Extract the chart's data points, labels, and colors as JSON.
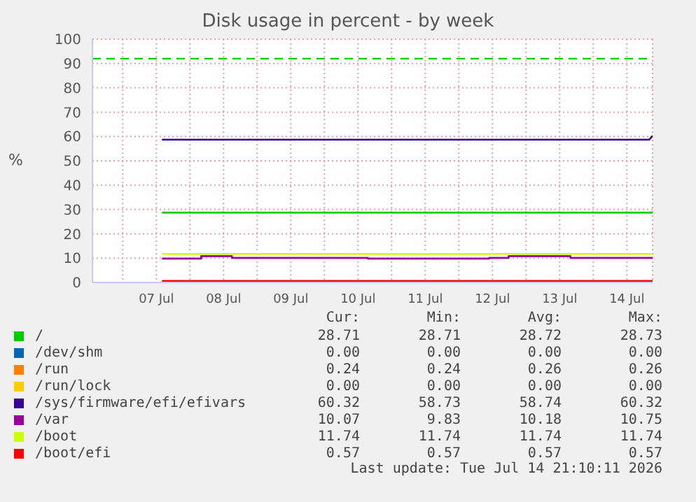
{
  "chart_data": {
    "type": "line",
    "title": "Disk usage in percent - by week",
    "ylabel": "%",
    "xlim": [
      "2026-07-06T13:10",
      "2026-07-14T21:10"
    ],
    "xticks": [
      {
        "value": "2026-07-07",
        "label": null
      },
      {
        "value": "2026-07-07T12:00",
        "label": "07 Jul"
      },
      {
        "value": "2026-07-08",
        "label": null
      },
      {
        "value": "2026-07-08T12:00",
        "label": "08 Jul"
      },
      {
        "value": "2026-07-09",
        "label": null
      },
      {
        "value": "2026-07-09T12:00",
        "label": "09 Jul"
      },
      {
        "value": "2026-07-10",
        "label": null
      },
      {
        "value": "2026-07-10T12:00",
        "label": "10 Jul"
      },
      {
        "value": "2026-07-11",
        "label": null
      },
      {
        "value": "2026-07-11T12:00",
        "label": "11 Jul"
      },
      {
        "value": "2026-07-12",
        "label": null
      },
      {
        "value": "2026-07-12T12:00",
        "label": "12 Jul"
      },
      {
        "value": "2026-07-13",
        "label": null
      },
      {
        "value": "2026-07-13T12:00",
        "label": "13 Jul"
      },
      {
        "value": "2026-07-14",
        "label": null
      },
      {
        "value": "2026-07-14T12:00",
        "label": "14 Jul"
      }
    ],
    "ylim": [
      0,
      100
    ],
    "yticks": [
      0,
      10,
      20,
      30,
      40,
      50,
      60,
      70,
      80,
      90,
      100
    ],
    "grid": true,
    "legend": "bottom",
    "marker": "none",
    "line_style": "solid",
    "ref_lines": [
      {
        "axis": "y",
        "value": 92,
        "color": "#00cc00",
        "line_style": "dashed"
      }
    ],
    "series": [
      {
        "name": "/",
        "color": "#00cc00",
        "x": [
          "2026-07-07T14:00",
          "2026-07-14T21:10"
        ],
        "values": [
          28.7,
          28.7
        ]
      },
      {
        "name": "/dev/shm",
        "color": "#0066b3"
      },
      {
        "name": "/run",
        "color": "#ff8000"
      },
      {
        "name": "/run/lock",
        "color": "#ffcc00"
      },
      {
        "name": "/sys/firmware/efi/efivars",
        "color": "#330099",
        "x": [
          "2026-07-07T14:00",
          "2026-07-14T20:00",
          "2026-07-14T21:10"
        ],
        "values": [
          58.7,
          58.7,
          60.3
        ]
      },
      {
        "name": "/var",
        "color": "#990099",
        "type": "step",
        "x": [
          "2026-07-07T14:00",
          "2026-07-08T04:00",
          "2026-07-08T15:00",
          "2026-07-10T15:30",
          "2026-07-12T10:50",
          "2026-07-12T17:45",
          "2026-07-13T15:50",
          "2026-07-14T21:10"
        ],
        "values": [
          9.8,
          10.8,
          10.1,
          9.8,
          10.1,
          10.8,
          10.1,
          10.1
        ]
      },
      {
        "name": "/boot",
        "color": "#ccff00",
        "x": [
          "2026-07-07T14:00",
          "2026-07-14T21:10"
        ],
        "values": [
          11.7,
          11.7
        ]
      },
      {
        "name": "/boot/efi",
        "color": "#ff0000",
        "x": [
          "2026-07-07T14:00",
          "2026-07-14T21:10"
        ],
        "values": [
          0.6,
          0.6
        ]
      }
    ],
    "annotations": [
      "Cur:",
      "Min:",
      "Avg:",
      "Max:",
      "28.71",
      "28.71",
      "28.72",
      "28.73",
      "0.00",
      "0.00",
      "0.00",
      "0.00",
      "0.24",
      "0.24",
      "0.26",
      "0.26",
      "0.00",
      "0.00",
      "0.00",
      "0.00",
      "60.32",
      "58.73",
      "58.74",
      "60.32",
      "10.07",
      "9.83",
      "10.18",
      "10.75",
      "11.74",
      "11.74",
      "11.74",
      "11.74",
      "0.57",
      "0.57",
      "0.57",
      "0.57",
      "Last update: Tue Jul 14 21:10:11 2026"
    ]
  }
}
